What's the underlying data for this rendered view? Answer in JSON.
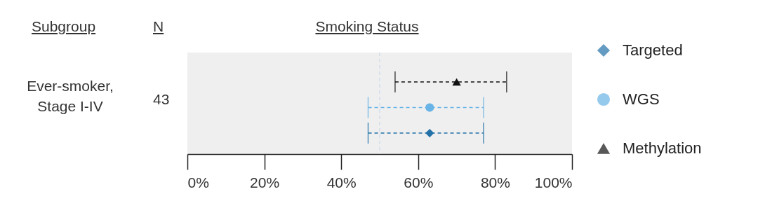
{
  "chart_data": {
    "type": "scatter",
    "orientation": "horizontal",
    "title": "Smoking Status",
    "categories": [
      "Ever-smoker, Stage I-IV"
    ],
    "annotations": [
      "Subgroup",
      "N",
      "43"
    ],
    "xlim": [
      0,
      100
    ],
    "xticks": [
      {
        "value": 0,
        "label": "0%"
      },
      {
        "value": 20,
        "label": "20%"
      },
      {
        "value": 40,
        "label": "40%"
      },
      {
        "value": 60,
        "label": "60%"
      },
      {
        "value": 80,
        "label": "80%"
      },
      {
        "value": 100,
        "label": "100%"
      }
    ],
    "series": [
      {
        "name": "Targeted",
        "color": "#2271a8",
        "marker": "diamond",
        "values": [
          63
        ],
        "errors": [
          [
            47,
            77
          ]
        ]
      },
      {
        "name": "WGS",
        "color": "#68b4e6",
        "marker": "circle",
        "values": [
          63
        ],
        "errors": [
          [
            47,
            77
          ]
        ]
      },
      {
        "name": "Methylation",
        "color": "#111111",
        "marker": "triangle",
        "values": [
          70
        ],
        "errors": [
          [
            54,
            83
          ]
        ]
      }
    ],
    "ref_lines": [
      {
        "axis": "x",
        "value": 50,
        "color": "#c9d9ea",
        "line_style": "dashed"
      }
    ],
    "line_style": "dashed",
    "legend": "right"
  }
}
